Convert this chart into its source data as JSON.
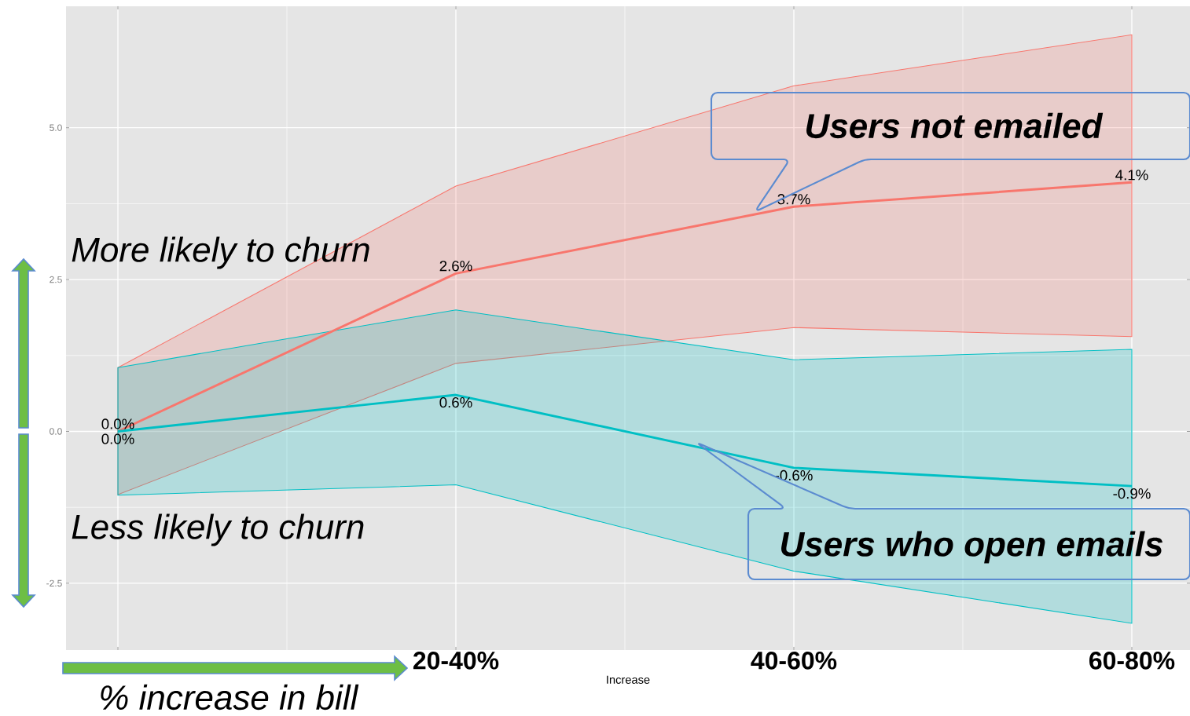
{
  "chart_data": {
    "type": "line",
    "categories": [
      null,
      "20-40%",
      "40-60%",
      "60-80%"
    ],
    "xlabel": "Increase",
    "ylim": [
      -3.6,
      7.0
    ],
    "yticks": [
      {
        "value": -2.5,
        "label": "-2.5"
      },
      {
        "value": 0,
        "label": "0.0"
      },
      {
        "value": 2.5,
        "label": "2.5"
      },
      {
        "value": 5,
        "label": "5.0"
      }
    ],
    "grid": true,
    "series": [
      {
        "name": "Users not emailed",
        "color": "#f8766d",
        "values": [
          0,
          2.6,
          3.7,
          4.1
        ],
        "lower": [
          -1.04,
          1.12,
          1.71,
          1.56
        ],
        "upper": [
          1.05,
          4.04,
          5.69,
          6.53
        ],
        "value_labels": [
          "0.0%",
          "2.6%",
          "3.7%",
          "4.1%"
        ]
      },
      {
        "name": "Users who open emails",
        "color": "#00bfc4",
        "values": [
          0,
          0.6,
          -0.6,
          -0.9
        ],
        "lower": [
          -1.05,
          -0.88,
          -2.3,
          -3.16
        ],
        "upper": [
          1.05,
          2.0,
          1.18,
          1.35
        ],
        "value_labels": [
          "0.0%",
          "0.6%",
          "-0.6%",
          "-0.9%"
        ]
      }
    ],
    "annotations": [
      "More likely to churn",
      "Less likely to churn",
      "% increase in bill"
    ]
  }
}
